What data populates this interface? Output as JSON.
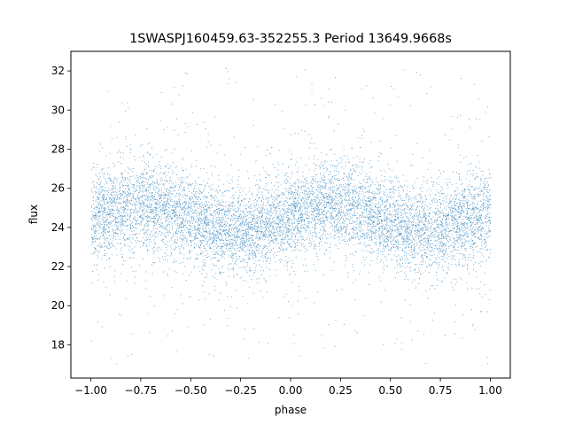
{
  "chart_data": {
    "type": "scatter",
    "title": "1SWASPJ160459.63-352255.3 Period 13649.9668s",
    "xlabel": "phase",
    "ylabel": "flux",
    "xlim": [
      -1.1,
      1.1
    ],
    "ylim": [
      16.3,
      33.0
    ],
    "xticks": [
      -1.0,
      -0.75,
      -0.5,
      -0.25,
      0.0,
      0.25,
      0.5,
      0.75,
      1.0
    ],
    "xtick_labels": [
      "−1.00",
      "−0.75",
      "−0.50",
      "−0.25",
      "0.00",
      "0.25",
      "0.50",
      "0.75",
      "1.00"
    ],
    "yticks": [
      18,
      20,
      22,
      24,
      26,
      28,
      30,
      32
    ],
    "ytick_labels": [
      "18",
      "20",
      "22",
      "24",
      "26",
      "28",
      "30",
      "32"
    ],
    "grid": false,
    "legend": "none",
    "marker_color": "#1f77b4",
    "series": [
      {
        "x_range": [
          -1.0,
          1.0
        ],
        "mean_flux": 24.5,
        "amplitude": 0.6,
        "peak_phases": [
          -0.75,
          0.2
        ],
        "trough_phases": [
          -0.25,
          0.7
        ],
        "core_spread": 1.1,
        "outlier_range": [
          17.0,
          32.2
        ],
        "approx_points": 60000
      }
    ]
  }
}
